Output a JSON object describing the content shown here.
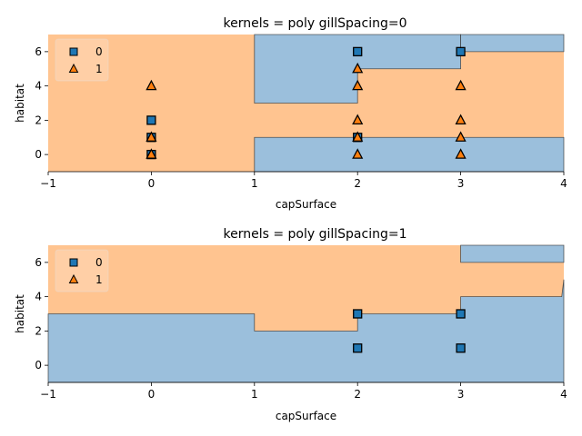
{
  "chart_data": [
    {
      "type": "decision-region",
      "title": "kernels = poly gillSpacing=0",
      "xlabel": "capSurface",
      "ylabel": "habitat",
      "xlim": [
        -1,
        4
      ],
      "ylim": [
        -1,
        7
      ],
      "xticks": [
        -1,
        0,
        1,
        2,
        3,
        4
      ],
      "yticks": [
        0,
        2,
        4,
        6
      ],
      "legend": {
        "placement": "top-left",
        "entries": [
          "0",
          "1"
        ]
      },
      "colors": {
        "class0_region": "#9bbfdc",
        "class1_region": "#ffc490",
        "class0_marker": "#1f77b4",
        "class1_marker": "#ff7f0e"
      },
      "class0_regions": [
        [
          [
            1,
            -1
          ],
          [
            4,
            -1
          ],
          [
            4,
            1
          ],
          [
            1,
            1
          ]
        ],
        [
          [
            1,
            3
          ],
          [
            2,
            3
          ],
          [
            2,
            5
          ],
          [
            3,
            5
          ],
          [
            3,
            7
          ],
          [
            1,
            7
          ]
        ],
        [
          [
            3,
            6
          ],
          [
            3,
            7
          ],
          [
            4,
            7
          ],
          [
            4,
            6
          ]
        ]
      ],
      "series": [
        {
          "name": "0",
          "marker": "square",
          "x": [
            0,
            0,
            0,
            2,
            2,
            3
          ],
          "y": [
            0,
            1,
            2,
            1,
            6,
            6
          ]
        },
        {
          "name": "1",
          "marker": "triangle",
          "x": [
            0,
            0,
            0,
            2,
            2,
            2,
            2,
            2,
            3,
            3,
            3,
            3
          ],
          "y": [
            0,
            1,
            4,
            0,
            1,
            2,
            4,
            5,
            0,
            1,
            2,
            4
          ]
        }
      ]
    },
    {
      "type": "decision-region",
      "title": "kernels = poly gillSpacing=1",
      "xlabel": "capSurface",
      "ylabel": "habitat",
      "xlim": [
        -1,
        4
      ],
      "ylim": [
        -1,
        7
      ],
      "xticks": [
        -1,
        0,
        1,
        2,
        3,
        4
      ],
      "yticks": [
        0,
        2,
        4,
        6
      ],
      "legend": {
        "placement": "top-left",
        "entries": [
          "0",
          "1"
        ]
      },
      "colors": {
        "class0_region": "#9bbfdc",
        "class1_region": "#ffc490",
        "class0_marker": "#1f77b4",
        "class1_marker": "#ff7f0e"
      },
      "class0_regions": [
        [
          [
            -1,
            -1
          ],
          [
            4,
            -1
          ],
          [
            4,
            5
          ],
          [
            3.98,
            4
          ],
          [
            3,
            4
          ],
          [
            3,
            3
          ],
          [
            2,
            3
          ],
          [
            2,
            2
          ],
          [
            1,
            2
          ],
          [
            1,
            3
          ],
          [
            -1,
            3
          ]
        ],
        [
          [
            3,
            6
          ],
          [
            3,
            7
          ],
          [
            4,
            7
          ],
          [
            4,
            6
          ]
        ]
      ],
      "series": [
        {
          "name": "0",
          "marker": "square",
          "x": [
            2,
            2,
            3,
            3
          ],
          "y": [
            1,
            3,
            1,
            3
          ]
        }
      ]
    }
  ]
}
